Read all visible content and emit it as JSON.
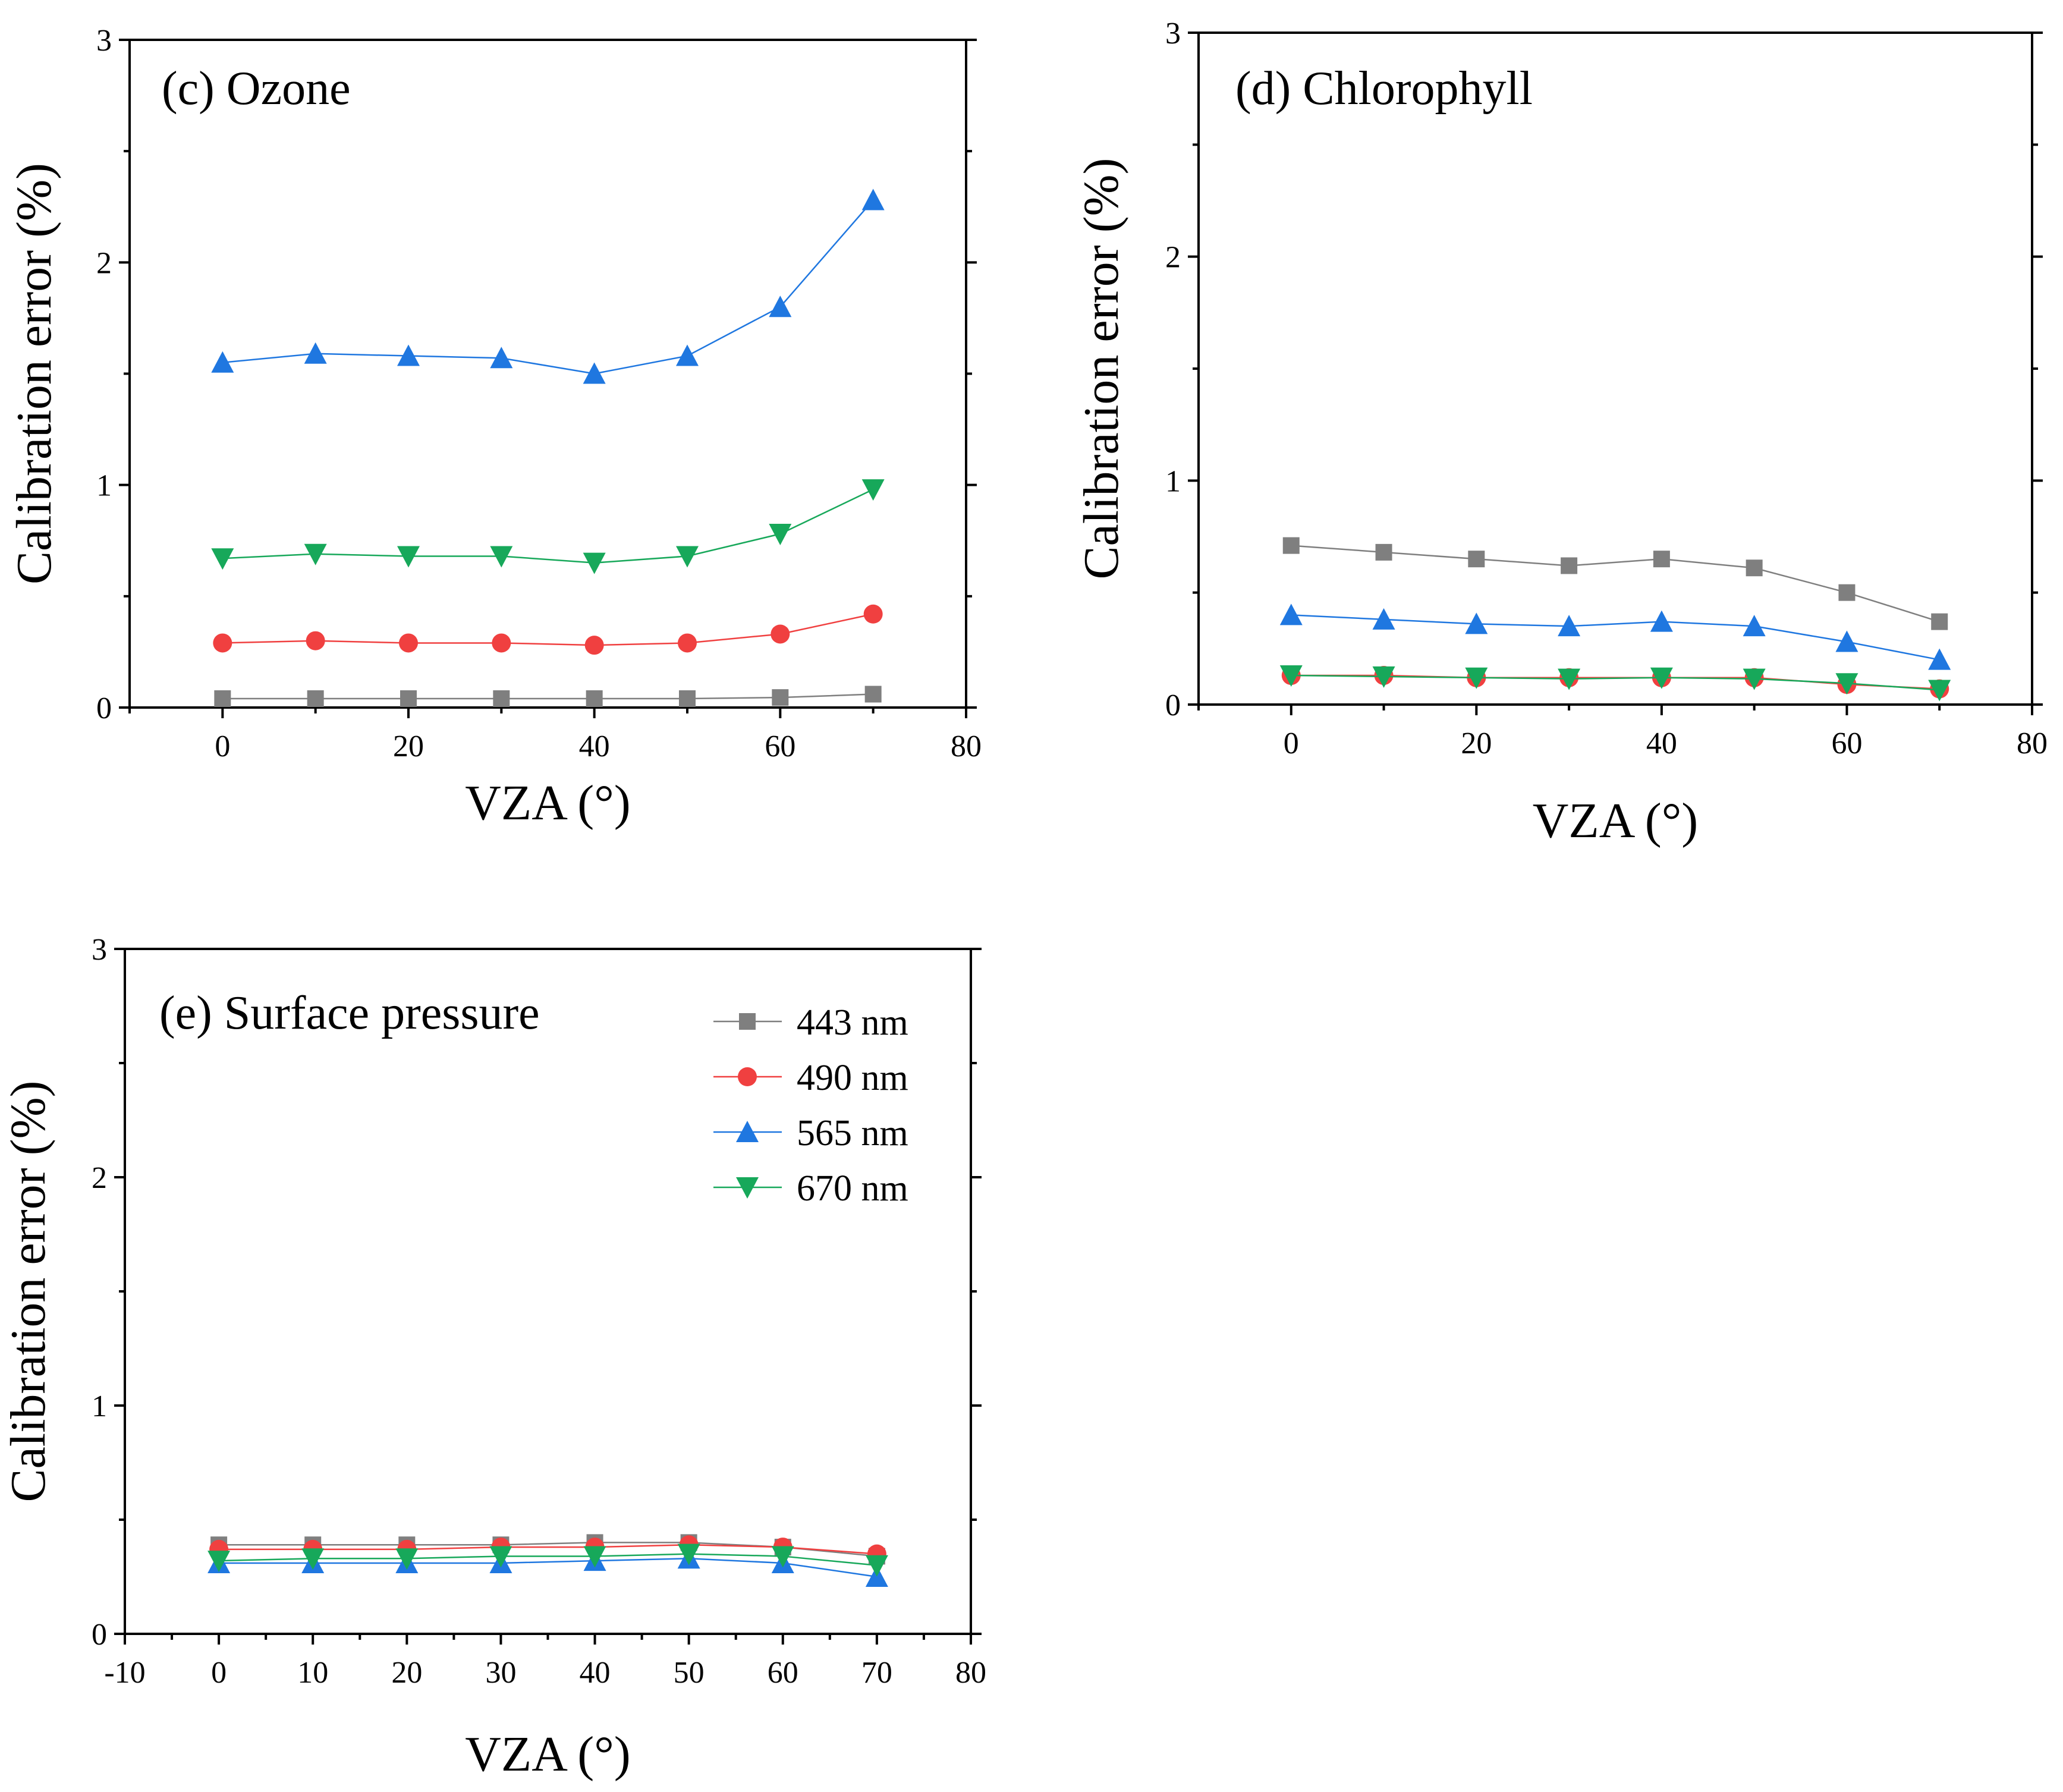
{
  "chart_data": [
    {
      "type": "line",
      "title": "(c) Ozone",
      "xlabel": "VZA (°)",
      "ylabel": "Calibration error (%)",
      "xlim": [
        -10,
        80
      ],
      "ylim": [
        0,
        3
      ],
      "xticks": [
        0,
        20,
        40,
        60,
        80
      ],
      "yticks": [
        0,
        1,
        2,
        3
      ],
      "x": [
        0,
        10,
        20,
        30,
        40,
        50,
        60,
        70
      ],
      "grid": false,
      "series": [
        {
          "name": "443 nm",
          "color": "#7f7f7f",
          "marker": "square",
          "values": [
            0.04,
            0.04,
            0.04,
            0.04,
            0.04,
            0.04,
            0.045,
            0.06
          ]
        },
        {
          "name": "490 nm",
          "color": "#f04040",
          "marker": "circle",
          "values": [
            0.29,
            0.3,
            0.29,
            0.29,
            0.28,
            0.29,
            0.33,
            0.42
          ]
        },
        {
          "name": "565 nm",
          "color": "#1f77e0",
          "marker": "triangle-up",
          "values": [
            1.55,
            1.59,
            1.58,
            1.57,
            1.5,
            1.58,
            1.8,
            2.28
          ]
        },
        {
          "name": "670 nm",
          "color": "#17a85a",
          "marker": "triangle-down",
          "values": [
            0.67,
            0.69,
            0.68,
            0.68,
            0.65,
            0.68,
            0.78,
            0.98
          ]
        }
      ]
    },
    {
      "type": "line",
      "title": "(d) Chlorophyll",
      "xlabel": "VZA (°)",
      "ylabel": "Calibration error (%)",
      "xlim": [
        -10,
        80
      ],
      "ylim": [
        0,
        3
      ],
      "xticks": [
        0,
        20,
        40,
        60,
        80
      ],
      "yticks": [
        0,
        1,
        2,
        3
      ],
      "x": [
        0,
        10,
        20,
        30,
        40,
        50,
        60,
        70
      ],
      "grid": false,
      "series": [
        {
          "name": "443 nm",
          "color": "#7f7f7f",
          "marker": "square",
          "values": [
            0.71,
            0.68,
            0.65,
            0.62,
            0.65,
            0.61,
            0.5,
            0.37
          ]
        },
        {
          "name": "490 nm",
          "color": "#f04040",
          "marker": "circle",
          "values": [
            0.13,
            0.13,
            0.12,
            0.12,
            0.12,
            0.12,
            0.09,
            0.07
          ]
        },
        {
          "name": "565 nm",
          "color": "#1f77e0",
          "marker": "triangle-up",
          "values": [
            0.4,
            0.38,
            0.36,
            0.35,
            0.37,
            0.35,
            0.28,
            0.2
          ]
        },
        {
          "name": "670 nm",
          "color": "#17a85a",
          "marker": "triangle-down",
          "values": [
            0.13,
            0.125,
            0.12,
            0.115,
            0.12,
            0.115,
            0.095,
            0.065
          ]
        }
      ]
    },
    {
      "type": "line",
      "title": "(e) Surface pressure",
      "xlabel": "VZA (°)",
      "ylabel": "Calibration error (%)",
      "xlim": [
        -10,
        80
      ],
      "ylim": [
        0,
        3
      ],
      "xticks": [
        -10,
        0,
        10,
        20,
        30,
        40,
        50,
        60,
        70,
        80
      ],
      "yticks": [
        0,
        1,
        2,
        3
      ],
      "x": [
        0,
        10,
        20,
        30,
        40,
        50,
        60,
        70
      ],
      "grid": false,
      "legend_position": "top-right",
      "series": [
        {
          "name": "443 nm",
          "color": "#7f7f7f",
          "marker": "square",
          "values": [
            0.39,
            0.39,
            0.39,
            0.39,
            0.4,
            0.4,
            0.38,
            0.34
          ]
        },
        {
          "name": "490 nm",
          "color": "#f04040",
          "marker": "circle",
          "values": [
            0.37,
            0.37,
            0.37,
            0.38,
            0.38,
            0.39,
            0.38,
            0.35
          ]
        },
        {
          "name": "565 nm",
          "color": "#1f77e0",
          "marker": "triangle-up",
          "values": [
            0.31,
            0.31,
            0.31,
            0.31,
            0.32,
            0.33,
            0.31,
            0.25
          ]
        },
        {
          "name": "670 nm",
          "color": "#17a85a",
          "marker": "triangle-down",
          "values": [
            0.32,
            0.33,
            0.33,
            0.34,
            0.34,
            0.35,
            0.34,
            0.3
          ]
        }
      ]
    }
  ]
}
